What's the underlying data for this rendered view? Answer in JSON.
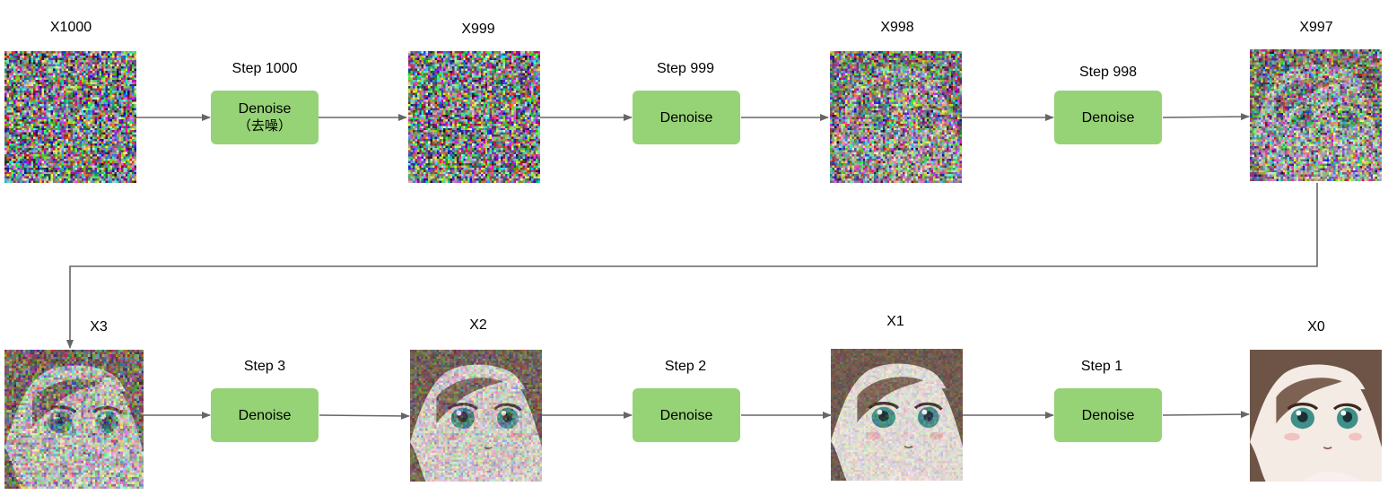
{
  "colors": {
    "box_fill": "#96d276",
    "arrow": "#666666",
    "label": "#000000"
  },
  "row1": {
    "images": [
      {
        "label": "X1000",
        "noise": 1.0
      },
      {
        "label": "X999",
        "noise": 1.0
      },
      {
        "label": "X998",
        "noise": 0.96
      },
      {
        "label": "X997",
        "noise": 0.9
      }
    ],
    "steps": [
      {
        "label": "Step 1000",
        "box_text": "Denoise",
        "box_subtext": "（去噪）"
      },
      {
        "label": "Step 999",
        "box_text": "Denoise"
      },
      {
        "label": "Step 998",
        "box_text": "Denoise"
      }
    ]
  },
  "row2": {
    "images": [
      {
        "label": "X3",
        "noise": 0.62
      },
      {
        "label": "X2",
        "noise": 0.38
      },
      {
        "label": "X1",
        "noise": 0.2
      },
      {
        "label": "X0",
        "noise": 0.0
      }
    ],
    "steps": [
      {
        "label": "Step 3",
        "box_text": "Denoise"
      },
      {
        "label": "Step 2",
        "box_text": "Denoise"
      },
      {
        "label": "Step 1",
        "box_text": "Denoise"
      }
    ]
  }
}
